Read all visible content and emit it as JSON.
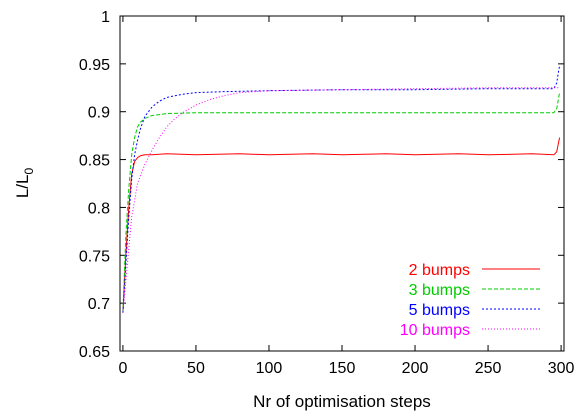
{
  "chart_data": {
    "type": "line",
    "title": "",
    "xlabel": "Nr of optimisation steps",
    "ylabel": "L/L",
    "ylabel_subscript": "0",
    "xlim": [
      -2,
      302
    ],
    "ylim": [
      0.65,
      1.0
    ],
    "xticks": [
      0,
      50,
      100,
      150,
      200,
      250,
      300
    ],
    "xtick_labels": [
      "0",
      "50",
      "100",
      "150",
      "200",
      "250",
      "300"
    ],
    "yticks": [
      0.65,
      0.7,
      0.75,
      0.8,
      0.85,
      0.9,
      0.95,
      1.0
    ],
    "ytick_labels": [
      "0.65",
      "0.7",
      "0.75",
      "0.8",
      "0.85",
      "0.9",
      "0.95",
      "1"
    ],
    "grid": false,
    "legend_position": "bottom-right",
    "series": [
      {
        "name": "2 bumps",
        "color": "#ff0000",
        "dash": "solid",
        "x": [
          0,
          2,
          4,
          6,
          8,
          10,
          12,
          15,
          20,
          30,
          50,
          80,
          100,
          130,
          150,
          180,
          200,
          230,
          250,
          280,
          295,
          297,
          298,
          299
        ],
        "y": [
          0.69,
          0.75,
          0.8,
          0.835,
          0.848,
          0.852,
          0.854,
          0.855,
          0.855,
          0.856,
          0.855,
          0.856,
          0.855,
          0.856,
          0.855,
          0.856,
          0.855,
          0.856,
          0.855,
          0.856,
          0.855,
          0.858,
          0.866,
          0.873
        ]
      },
      {
        "name": "3 bumps",
        "color": "#00cc00",
        "dash": "dashed",
        "x": [
          0,
          2,
          4,
          6,
          8,
          10,
          12,
          15,
          20,
          25,
          30,
          50,
          80,
          100,
          150,
          200,
          250,
          295,
          297,
          298,
          299
        ],
        "y": [
          0.69,
          0.77,
          0.82,
          0.855,
          0.873,
          0.884,
          0.889,
          0.893,
          0.896,
          0.897,
          0.898,
          0.899,
          0.899,
          0.899,
          0.899,
          0.899,
          0.899,
          0.899,
          0.903,
          0.912,
          0.92
        ]
      },
      {
        "name": "5 bumps",
        "color": "#0000ff",
        "dash": "dotted",
        "x": [
          0,
          2,
          4,
          6,
          8,
          10,
          12,
          15,
          20,
          25,
          30,
          40,
          50,
          70,
          100,
          150,
          200,
          250,
          295,
          297,
          298,
          299
        ],
        "y": [
          0.69,
          0.74,
          0.79,
          0.83,
          0.855,
          0.87,
          0.882,
          0.895,
          0.905,
          0.911,
          0.915,
          0.918,
          0.92,
          0.921,
          0.922,
          0.923,
          0.923,
          0.924,
          0.924,
          0.93,
          0.94,
          0.948
        ]
      },
      {
        "name": "10 bumps",
        "color": "#ff00ff",
        "dash": "dotted-fine",
        "x": [
          0,
          3,
          6,
          10,
          15,
          20,
          25,
          30,
          35,
          40,
          50,
          60,
          70,
          80,
          100,
          150,
          200,
          250,
          299
        ],
        "y": [
          0.69,
          0.74,
          0.79,
          0.825,
          0.845,
          0.86,
          0.873,
          0.884,
          0.892,
          0.898,
          0.907,
          0.913,
          0.917,
          0.92,
          0.922,
          0.923,
          0.924,
          0.925,
          0.925
        ]
      }
    ]
  }
}
